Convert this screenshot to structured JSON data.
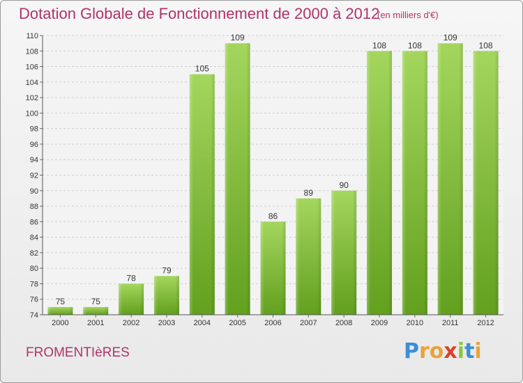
{
  "title": "Dotation Globale de Fonctionnement de 2000 à 2012",
  "unit_note": "(en milliers d'€)",
  "commune": "FROMENTIèRES",
  "logo": {
    "letters": [
      "P",
      "r",
      "o",
      "x",
      "i",
      "t",
      "i"
    ],
    "colors": [
      "#3b8fd6",
      "#e8a33c",
      "#e8a33c",
      "#d9402b",
      "#8dc63f",
      "#3b8fd6",
      "#e8a33c"
    ]
  },
  "colors": {
    "bar_light": "#a4d65e",
    "bar_dark": "#62a01e",
    "title": "#b0336a",
    "grid": "#cfcfcf"
  },
  "chart_data": {
    "type": "bar",
    "title": "Dotation Globale de Fonctionnement de 2000 à 2012",
    "subtitle": "(en milliers d'€)",
    "categories": [
      "2000",
      "2001",
      "2002",
      "2003",
      "2004",
      "2005",
      "2006",
      "2007",
      "2008",
      "2009",
      "2010",
      "2011",
      "2012"
    ],
    "values": [
      75,
      75,
      78,
      79,
      105,
      109,
      86,
      89,
      90,
      108,
      108,
      109,
      108
    ],
    "ylim": [
      74,
      110
    ],
    "yticks": [
      74,
      76,
      78,
      80,
      82,
      84,
      86,
      88,
      90,
      92,
      94,
      96,
      98,
      100,
      102,
      104,
      106,
      108,
      110
    ],
    "grid": "horizontal-dashed",
    "legend": "none"
  }
}
